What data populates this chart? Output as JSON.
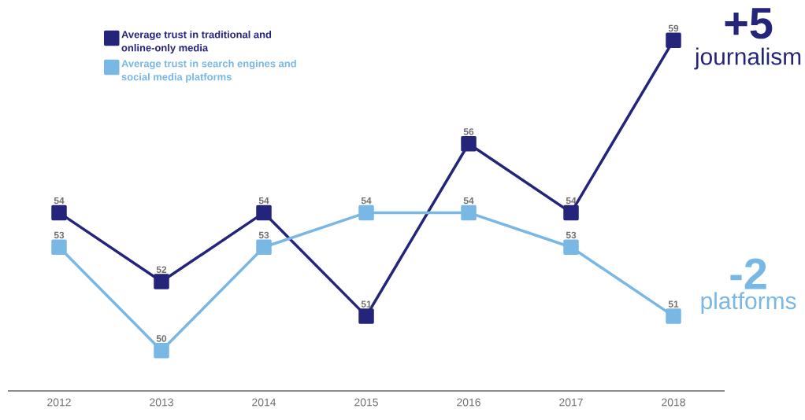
{
  "chart_data": {
    "type": "line",
    "categories": [
      "2012",
      "2013",
      "2014",
      "2015",
      "2016",
      "2017",
      "2018"
    ],
    "series": [
      {
        "name": "Average trust in traditional and online-only media",
        "color": "#25247b",
        "values": [
          54,
          52,
          54,
          51,
          56,
          54,
          59
        ]
      },
      {
        "name": "Average trust in search engines and social media platforms",
        "color": "#79b8e4",
        "values": [
          53,
          50,
          53,
          54,
          54,
          53,
          51
        ]
      }
    ],
    "tick_labels": "x",
    "data_labels": true,
    "marker": "square",
    "line_style": "solid",
    "legend": "top left",
    "annotations": [
      "+5",
      "journalism",
      "-2",
      "platforms"
    ]
  }
}
